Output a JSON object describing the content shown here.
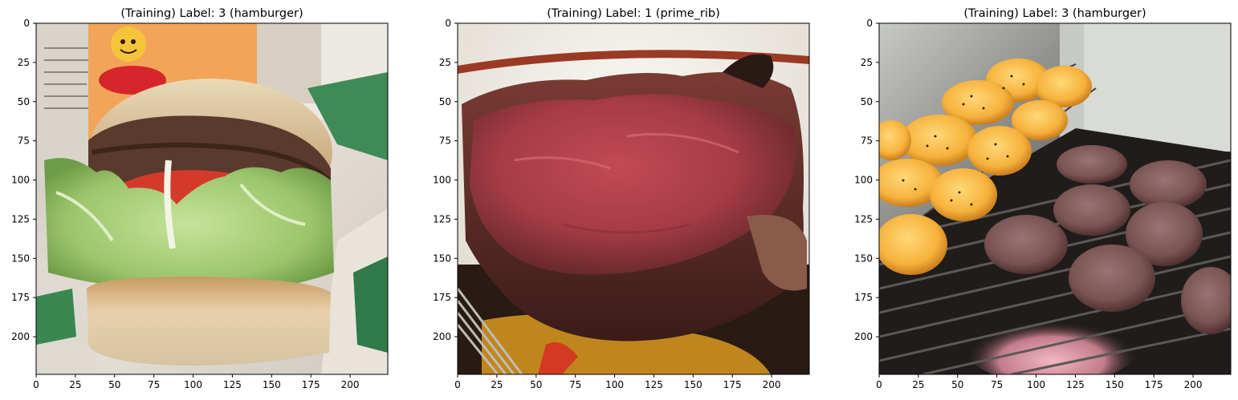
{
  "figure": {
    "panels": [
      {
        "title": "(Training)  Label: 3 (hamburger)",
        "image_label": "hamburger",
        "x_ticks": [
          "0",
          "25",
          "50",
          "75",
          "100",
          "125",
          "150",
          "175",
          "200"
        ],
        "y_ticks": [
          "0",
          "25",
          "50",
          "75",
          "100",
          "125",
          "150",
          "175",
          "200"
        ]
      },
      {
        "title": "(Training)  Label: 1 (prime_rib)",
        "image_label": "prime_rib",
        "x_ticks": [
          "0",
          "25",
          "50",
          "75",
          "100",
          "125",
          "150",
          "175",
          "200"
        ],
        "y_ticks": [
          "0",
          "25",
          "50",
          "75",
          "100",
          "125",
          "150",
          "175",
          "200"
        ]
      },
      {
        "title": "(Training)  Label: 3 (hamburger)",
        "image_label": "hamburger",
        "x_ticks": [
          "0",
          "25",
          "50",
          "75",
          "100",
          "125",
          "150",
          "175",
          "200"
        ],
        "y_ticks": [
          "0",
          "25",
          "50",
          "75",
          "100",
          "125",
          "150",
          "175",
          "200"
        ]
      }
    ],
    "axis_range": [
      0,
      224
    ]
  }
}
